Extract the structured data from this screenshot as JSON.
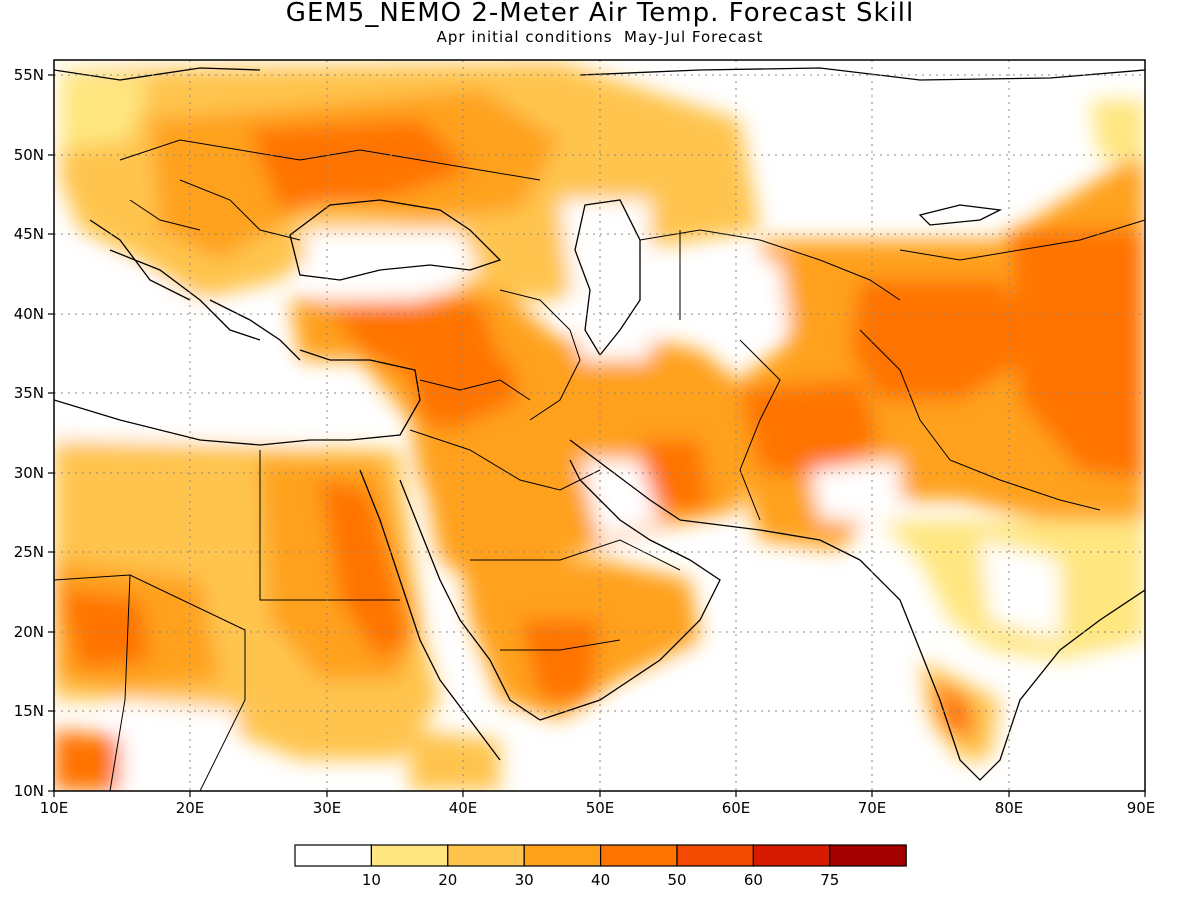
{
  "title": "GEM5_NEMO 2-Meter Air Temp. Forecast Skill",
  "subtitle": "Apr initial conditions  May-Jul Forecast",
  "map": {
    "region": "Middle East / North Africa / South-Central Asia",
    "lon_range": [
      10,
      90
    ],
    "lat_range": [
      10,
      56
    ],
    "lon_ticks": [
      "10E",
      "20E",
      "30E",
      "40E",
      "50E",
      "60E",
      "70E",
      "80E",
      "90E"
    ],
    "lat_ticks": [
      "10N",
      "15N",
      "20N",
      "25N",
      "30N",
      "35N",
      "40N",
      "45N",
      "50N",
      "55N"
    ],
    "gridlines": "dotted",
    "field": "2-meter air temperature forecast skill (shaded)"
  },
  "colorbar": {
    "labels": [
      "10",
      "20",
      "30",
      "40",
      "50",
      "60",
      "75"
    ],
    "colors": [
      "#ffffff",
      "#ffe680",
      "#ffc44d",
      "#ffa11a",
      "#ff7300",
      "#f24a00",
      "#d61a00",
      "#a30000"
    ]
  }
}
